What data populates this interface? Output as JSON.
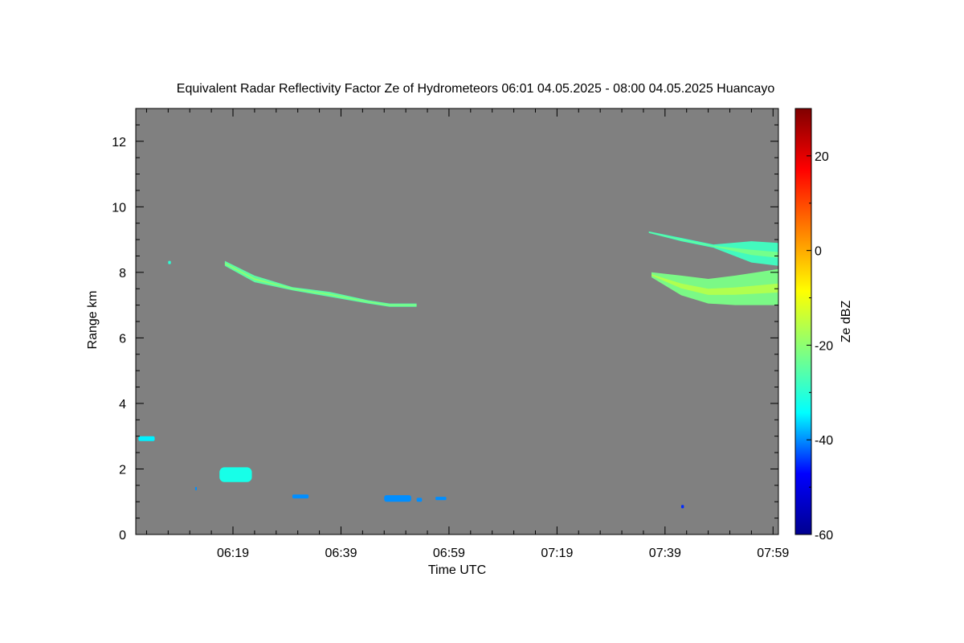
{
  "chart_data": {
    "type": "heatmap",
    "title": "Equivalent Radar Reflectivity Factor Ze of Hydrometeors   06:01 04.05.2025 - 08:00 04.05.2025 Huancayo",
    "xlabel": "Time UTC",
    "ylabel": "Range km",
    "colorbar_label": "Ze dBZ",
    "x_range_minutes": [
      361,
      480
    ],
    "xticks": [
      {
        "label": "06:19",
        "minutes": 379
      },
      {
        "label": "06:39",
        "minutes": 399
      },
      {
        "label": "06:59",
        "minutes": 419
      },
      {
        "label": "07:19",
        "minutes": 439
      },
      {
        "label": "07:39",
        "minutes": 459
      },
      {
        "label": "07:59",
        "minutes": 479
      }
    ],
    "ylim": [
      0,
      13
    ],
    "yticks": [
      0,
      2,
      4,
      6,
      8,
      10,
      12
    ],
    "colorbar_range": [
      -60,
      30
    ],
    "colorbar_ticks": [
      -60,
      -40,
      -20,
      0,
      20
    ],
    "background_color": "#808080",
    "colormap": [
      "#00008f",
      "#0000ff",
      "#00ffff",
      "#80ff80",
      "#ffff00",
      "#ff8000",
      "#ff0000",
      "#800000"
    ],
    "echoes": [
      {
        "name": "ice-cloud-left",
        "type": "streak",
        "ze_dbz": -25,
        "points": [
          [
            377.5,
            8.2
          ],
          [
            383,
            7.7
          ],
          [
            390,
            7.45
          ],
          [
            397,
            7.25
          ],
          [
            404,
            7.05
          ],
          [
            408,
            6.95
          ],
          [
            413,
            6.95
          ]
        ],
        "upper": [
          [
            377.5,
            8.35
          ],
          [
            383,
            7.9
          ],
          [
            390,
            7.55
          ],
          [
            397,
            7.4
          ],
          [
            404,
            7.15
          ],
          [
            408,
            7.05
          ],
          [
            413,
            7.05
          ]
        ]
      },
      {
        "name": "ice-cloud-right-lower",
        "type": "streak",
        "ze_dbz": -22,
        "points": [
          [
            456.5,
            7.85
          ],
          [
            462,
            7.3
          ],
          [
            467,
            7.05
          ],
          [
            472,
            7.0
          ],
          [
            480,
            7.0
          ]
        ],
        "upper": [
          [
            456.5,
            8.0
          ],
          [
            462,
            7.9
          ],
          [
            467,
            7.8
          ],
          [
            472,
            7.9
          ],
          [
            480,
            8.1
          ]
        ]
      },
      {
        "name": "ice-cloud-right-upper",
        "type": "streak",
        "ze_dbz": -28,
        "points": [
          [
            456,
            9.2
          ],
          [
            462,
            8.95
          ],
          [
            468,
            8.75
          ],
          [
            475,
            8.3
          ],
          [
            480,
            8.2
          ]
        ],
        "upper": [
          [
            456,
            9.25
          ],
          [
            462,
            9.05
          ],
          [
            468,
            8.85
          ],
          [
            475,
            8.95
          ],
          [
            480,
            8.9
          ]
        ]
      },
      {
        "name": "low-echo-1",
        "type": "blob",
        "ze_dbz": -35,
        "x": 361.5,
        "y": 2.85,
        "w": 3,
        "h": 0.15
      },
      {
        "name": "low-echo-2",
        "type": "blob",
        "ze_dbz": -32,
        "x": 376.5,
        "y": 1.6,
        "w": 6,
        "h": 0.45
      },
      {
        "name": "low-echo-3",
        "type": "blob",
        "ze_dbz": -40,
        "x": 390,
        "y": 1.1,
        "w": 3,
        "h": 0.12
      },
      {
        "name": "low-echo-4",
        "type": "blob",
        "ze_dbz": -40,
        "x": 407,
        "y": 1.0,
        "w": 5,
        "h": 0.2
      },
      {
        "name": "low-echo-5",
        "type": "blob",
        "ze_dbz": -40,
        "x": 413,
        "y": 1.0,
        "w": 1,
        "h": 0.12
      },
      {
        "name": "low-echo-6",
        "type": "blob",
        "ze_dbz": -40,
        "x": 416.5,
        "y": 1.05,
        "w": 2,
        "h": 0.1
      },
      {
        "name": "low-echo-7",
        "type": "blob",
        "ze_dbz": -45,
        "x": 462,
        "y": 0.8,
        "w": 0.5,
        "h": 0.1
      },
      {
        "name": "speck-1",
        "type": "blob",
        "ze_dbz": -30,
        "x": 367,
        "y": 8.25,
        "w": 0.5,
        "h": 0.1
      },
      {
        "name": "speck-2",
        "type": "blob",
        "ze_dbz": -40,
        "x": 372,
        "y": 1.35,
        "w": 0.3,
        "h": 0.1
      }
    ]
  }
}
